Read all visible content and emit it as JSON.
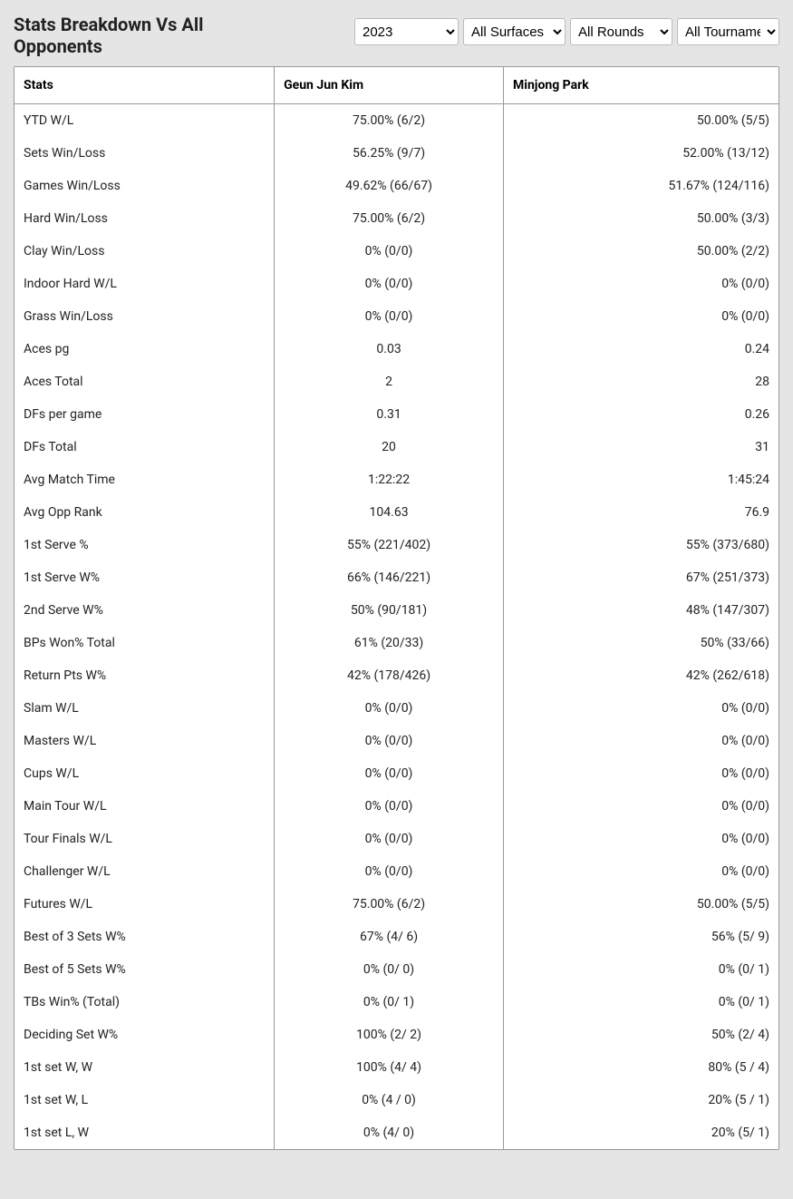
{
  "header": {
    "title": "Stats Breakdown Vs All Opponents"
  },
  "filters": {
    "year": {
      "selected": "2023",
      "options": [
        "2023"
      ]
    },
    "surface": {
      "selected": "All Surfaces",
      "options": [
        "All Surfaces"
      ]
    },
    "round": {
      "selected": "All Rounds",
      "options": [
        "All Rounds"
      ]
    },
    "tournament": {
      "selected": "All Tournaments",
      "options": [
        "All Tournaments"
      ]
    }
  },
  "table": {
    "columns": [
      "Stats",
      "Geun Jun Kim",
      "Minjong Park"
    ],
    "rows": [
      {
        "stat": "YTD W/L",
        "p1": "75.00% (6/2)",
        "p2": "50.00% (5/5)"
      },
      {
        "stat": "Sets Win/Loss",
        "p1": "56.25% (9/7)",
        "p2": "52.00% (13/12)"
      },
      {
        "stat": "Games Win/Loss",
        "p1": "49.62% (66/67)",
        "p2": "51.67% (124/116)"
      },
      {
        "stat": "Hard Win/Loss",
        "p1": "75.00% (6/2)",
        "p2": "50.00% (3/3)"
      },
      {
        "stat": "Clay Win/Loss",
        "p1": "0% (0/0)",
        "p2": "50.00% (2/2)"
      },
      {
        "stat": "Indoor Hard W/L",
        "p1": "0% (0/0)",
        "p2": "0% (0/0)"
      },
      {
        "stat": "Grass Win/Loss",
        "p1": "0% (0/0)",
        "p2": "0% (0/0)"
      },
      {
        "stat": "Aces pg",
        "p1": "0.03",
        "p2": "0.24"
      },
      {
        "stat": "Aces Total",
        "p1": "2",
        "p2": "28"
      },
      {
        "stat": "DFs per game",
        "p1": "0.31",
        "p2": "0.26"
      },
      {
        "stat": "DFs Total",
        "p1": "20",
        "p2": "31"
      },
      {
        "stat": "Avg Match Time",
        "p1": "1:22:22",
        "p2": "1:45:24"
      },
      {
        "stat": "Avg Opp Rank",
        "p1": "104.63",
        "p2": "76.9"
      },
      {
        "stat": "1st Serve %",
        "p1": "55% (221/402)",
        "p2": "55% (373/680)"
      },
      {
        "stat": "1st Serve W%",
        "p1": "66% (146/221)",
        "p2": "67% (251/373)"
      },
      {
        "stat": "2nd Serve W%",
        "p1": "50% (90/181)",
        "p2": "48% (147/307)"
      },
      {
        "stat": "BPs Won% Total",
        "p1": "61% (20/33)",
        "p2": "50% (33/66)"
      },
      {
        "stat": "Return Pts W%",
        "p1": "42% (178/426)",
        "p2": "42% (262/618)"
      },
      {
        "stat": "Slam W/L",
        "p1": "0% (0/0)",
        "p2": "0% (0/0)"
      },
      {
        "stat": "Masters W/L",
        "p1": "0% (0/0)",
        "p2": "0% (0/0)"
      },
      {
        "stat": "Cups W/L",
        "p1": "0% (0/0)",
        "p2": "0% (0/0)"
      },
      {
        "stat": "Main Tour W/L",
        "p1": "0% (0/0)",
        "p2": "0% (0/0)"
      },
      {
        "stat": "Tour Finals W/L",
        "p1": "0% (0/0)",
        "p2": "0% (0/0)"
      },
      {
        "stat": "Challenger W/L",
        "p1": "0% (0/0)",
        "p2": "0% (0/0)"
      },
      {
        "stat": "Futures W/L",
        "p1": "75.00% (6/2)",
        "p2": "50.00% (5/5)"
      },
      {
        "stat": "Best of 3 Sets W%",
        "p1": "67% (4/ 6)",
        "p2": "56% (5/ 9)"
      },
      {
        "stat": "Best of 5 Sets W%",
        "p1": "0% (0/ 0)",
        "p2": "0% (0/ 1)"
      },
      {
        "stat": "TBs Win% (Total)",
        "p1": "0% (0/ 1)",
        "p2": "0% (0/ 1)"
      },
      {
        "stat": "Deciding Set W%",
        "p1": "100% (2/ 2)",
        "p2": "50% (2/ 4)"
      },
      {
        "stat": "1st set W, W",
        "p1": "100% (4/ 4)",
        "p2": "80% (5 / 4)"
      },
      {
        "stat": "1st set W, L",
        "p1": "0% (4 / 0)",
        "p2": "20% (5 / 1)"
      },
      {
        "stat": "1st set L, W",
        "p1": "0% (4/ 0)",
        "p2": "20% (5/ 1)"
      }
    ]
  },
  "style": {
    "background_color": "#e5e5e5",
    "table_background": "#ffffff",
    "border_color": "#999999",
    "text_color": "#222222",
    "header_fontsize": 20,
    "cell_fontsize": 14
  }
}
